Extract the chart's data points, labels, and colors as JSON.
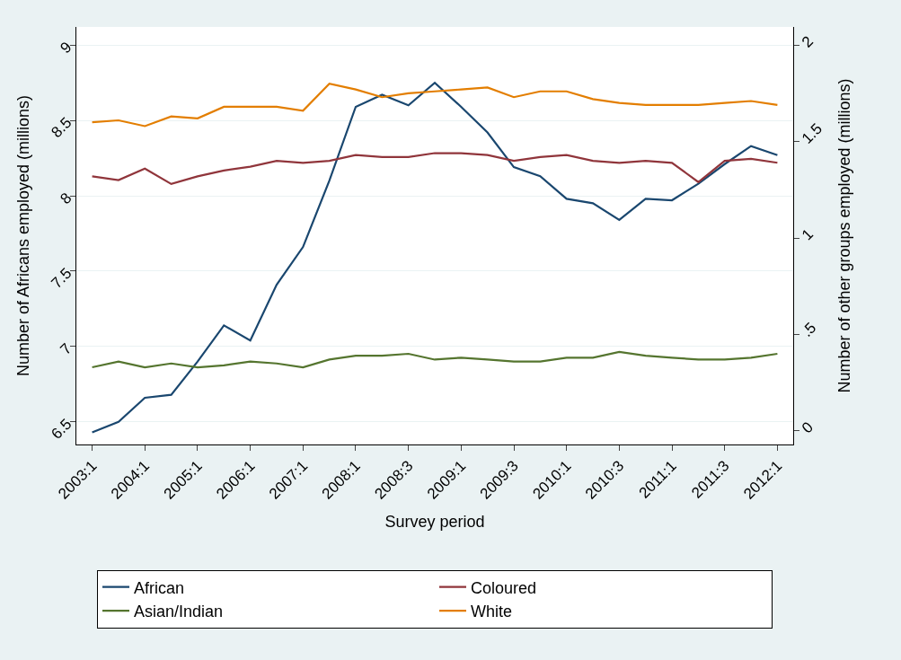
{
  "chart_data": {
    "type": "line",
    "xlabel": "Survey period",
    "ylabel": "Number of Africans employed (millions)",
    "y2label": "Number of other groups employed (millions)",
    "categories": [
      "2003:1",
      null,
      "2004:1",
      null,
      "2005:1",
      null,
      "2006:1",
      null,
      "2007:1",
      null,
      "2008:1",
      null,
      "2008:3",
      null,
      "2009:1",
      null,
      "2009:3",
      null,
      "2010:1",
      null,
      "2010:3",
      null,
      "2011:1",
      null,
      "2011:3",
      null,
      "2012:1"
    ],
    "series": [
      {
        "name": "African",
        "color": "#1a476f",
        "values": [
          6.43,
          6.5,
          6.66,
          6.68,
          6.9,
          7.14,
          7.04,
          7.41,
          7.66,
          8.1,
          8.59,
          8.67,
          8.6,
          8.75,
          8.59,
          8.42,
          8.19,
          8.13,
          7.98,
          7.95,
          7.84,
          7.98,
          7.97,
          8.08,
          8.21,
          8.33,
          8.27
        ]
      },
      {
        "name": "Coloured",
        "color": "#90353b",
        "axis": "y2",
        "values": [
          1.32,
          1.3,
          1.36,
          1.28,
          1.32,
          1.35,
          1.37,
          1.4,
          1.39,
          1.4,
          1.43,
          1.42,
          1.42,
          1.44,
          1.44,
          1.43,
          1.4,
          1.42,
          1.43,
          1.4,
          1.39,
          1.4,
          1.39,
          1.29,
          1.4,
          1.41,
          1.39
        ]
      },
      {
        "name": "Asian/Indian",
        "color": "#55752f",
        "axis": "y2",
        "values": [
          0.33,
          0.36,
          0.33,
          0.35,
          0.33,
          0.34,
          0.36,
          0.35,
          0.33,
          0.37,
          0.39,
          0.39,
          0.4,
          0.37,
          0.38,
          0.37,
          0.36,
          0.36,
          0.38,
          0.38,
          0.41,
          0.39,
          0.38,
          0.37,
          0.37,
          0.38,
          0.4
        ]
      },
      {
        "name": "White",
        "color": "#e37e00",
        "axis": "y2",
        "values": [
          1.6,
          1.61,
          1.58,
          1.63,
          1.62,
          1.68,
          1.68,
          1.68,
          1.66,
          1.8,
          1.77,
          1.73,
          1.75,
          1.76,
          1.77,
          1.78,
          1.73,
          1.76,
          1.76,
          1.72,
          1.7,
          1.69,
          1.69,
          1.69,
          1.7,
          1.71,
          1.69
        ]
      }
    ],
    "ylim": [
      6.35,
      9.12
    ],
    "yticks": [
      6.5,
      7,
      7.5,
      8,
      8.5,
      9
    ],
    "y2lim": [
      -0.07,
      2.094
    ],
    "y2ticks": [
      0,
      {
        "value": 0.5,
        "label": ".5"
      },
      1,
      1.5,
      2
    ],
    "grid": "y",
    "legend": "bottom",
    "marker": "none",
    "line_style": "solid"
  }
}
